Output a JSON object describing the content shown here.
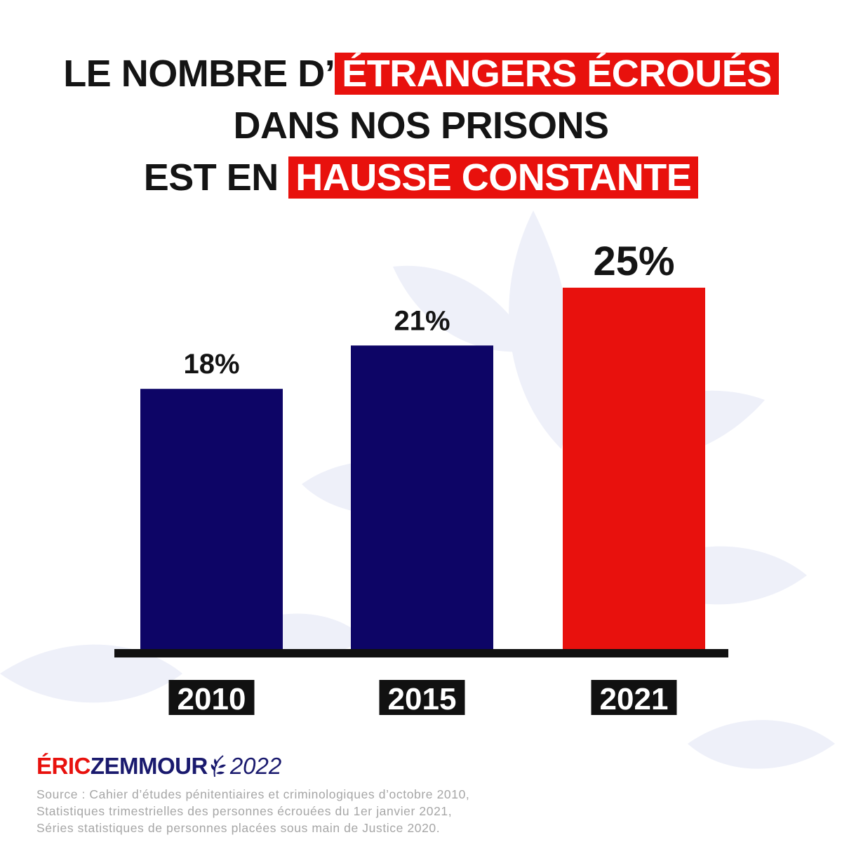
{
  "title": {
    "line1_prefix": "LE NOMBRE D’",
    "line1_highlight": "ÉTRANGERS ÉCROUÉS",
    "line2": "DANS NOS PRISONS",
    "line3_prefix": "EST EN ",
    "line3_highlight": "HAUSSE CONSTANTE"
  },
  "colors": {
    "highlight": "#e8110d",
    "bar_navy": "#0d0566",
    "bar_red": "#e8110d",
    "text_dark": "#141414",
    "source_gray": "#a6a6a6",
    "brand_navy": "#1a1a6e"
  },
  "chart_data": {
    "type": "bar",
    "categories": [
      "2010",
      "2015",
      "2021"
    ],
    "values": [
      18,
      21,
      25
    ],
    "value_labels": [
      "18%",
      "21%",
      "25%"
    ],
    "bar_colors": [
      "#0d0566",
      "#0d0566",
      "#e8110d"
    ],
    "ylim": [
      0,
      25
    ],
    "title": "",
    "xlabel": "",
    "ylabel": "",
    "grid": false,
    "legend": "none"
  },
  "brand": {
    "first": "ÉRIC",
    "last": "ZEMMOUR",
    "year": "2022",
    "icon": "laurel-icon"
  },
  "source": {
    "line1": "Source : Cahier d’études pénitentiaires et criminologiques d’octobre 2010,",
    "line2": "Statistiques trimestrielles des personnes écrouées du 1er janvier 2021,",
    "line3": "Séries statistiques de personnes placées sous main de Justice 2020."
  }
}
